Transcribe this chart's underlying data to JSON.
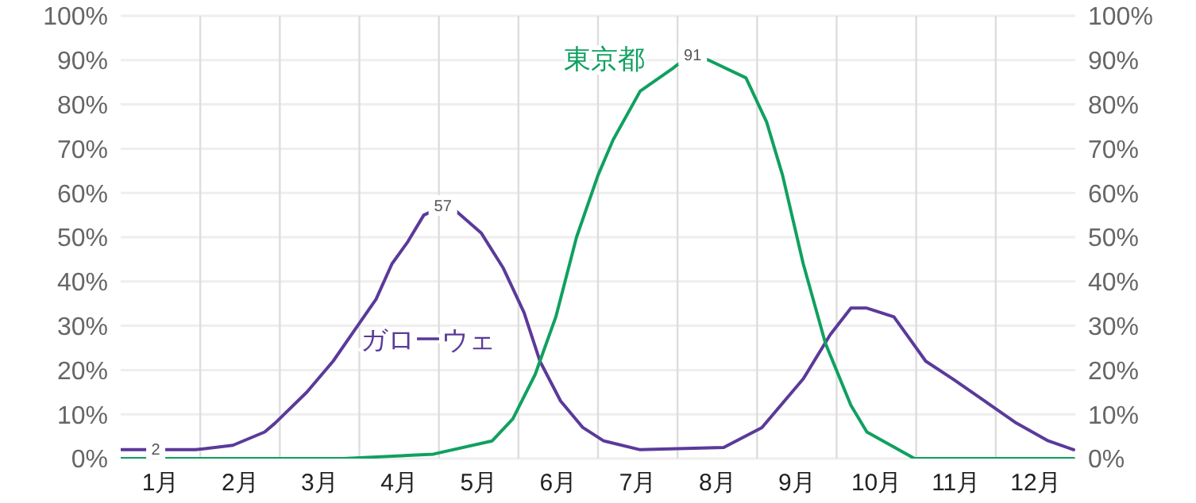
{
  "chart_data": {
    "type": "line",
    "x": [
      0,
      0.94,
      1.41,
      1.81,
      1.94,
      2.34,
      2.67,
      2.94,
      3.21,
      3.41,
      3.61,
      3.81,
      4.05,
      4.21,
      4.53,
      4.81,
      5.07,
      5.27,
      5.53,
      5.81,
      6.07,
      6.53,
      7.58,
      8.06,
      8.58,
      8.92,
      9.18,
      9.38,
      9.72,
      10.12,
      10.46,
      10.86,
      11.26,
      11.66,
      11.98
    ],
    "series": [
      {
        "name": "ガローウェ",
        "color": "#5b3a9a",
        "values": [
          2,
          2,
          3,
          6,
          8,
          15,
          22,
          29,
          36,
          44,
          49,
          55,
          57,
          56,
          51,
          43,
          33,
          22,
          13,
          7,
          4,
          2,
          2.5,
          7,
          18,
          28,
          34,
          34,
          32,
          22,
          18,
          13,
          8,
          4,
          2
        ]
      },
      {
        "name": "東京都",
        "color": "#10a060",
        "x": [
          0,
          2.8,
          3.93,
          4.67,
          4.93,
          5.21,
          5.47,
          5.73,
          6.0,
          6.19,
          6.53,
          6.93,
          7.0,
          7.19,
          7.39,
          7.86,
          8.12,
          8.32,
          8.58,
          8.86,
          9.18,
          9.38,
          9.98,
          11.98
        ],
        "values": [
          0,
          0,
          1,
          4,
          9,
          19,
          32,
          50,
          64,
          72,
          83,
          88,
          89,
          91,
          90,
          86,
          76,
          64,
          44,
          26,
          12,
          6,
          0,
          0
        ]
      }
    ],
    "annotations": [
      {
        "text": "2",
        "x": 0.44,
        "y": 2
      },
      {
        "text": "57",
        "x": 4.05,
        "y": 57
      },
      {
        "text": "91",
        "x": 7.19,
        "y": 91
      }
    ],
    "xlim": [
      0,
      12
    ],
    "xticks": [
      {
        "value": 0.5,
        "label": "1月"
      },
      {
        "value": 1,
        "label": null
      },
      {
        "value": 1.5,
        "label": "2月"
      },
      {
        "value": 2,
        "label": null
      },
      {
        "value": 2.5,
        "label": "3月"
      },
      {
        "value": 3,
        "label": null
      },
      {
        "value": 3.5,
        "label": "4月"
      },
      {
        "value": 4,
        "label": null
      },
      {
        "value": 4.5,
        "label": "5月"
      },
      {
        "value": 5,
        "label": null
      },
      {
        "value": 5.5,
        "label": "6月"
      },
      {
        "value": 6,
        "label": null
      },
      {
        "value": 6.5,
        "label": "7月"
      },
      {
        "value": 7,
        "label": null
      },
      {
        "value": 7.5,
        "label": "8月"
      },
      {
        "value": 8,
        "label": null
      },
      {
        "value": 8.5,
        "label": "9月"
      },
      {
        "value": 9,
        "label": null
      },
      {
        "value": 9.5,
        "label": "10月"
      },
      {
        "value": 10,
        "label": null
      },
      {
        "value": 10.5,
        "label": "11月"
      },
      {
        "value": 11,
        "label": null
      },
      {
        "value": 11.5,
        "label": "12月"
      }
    ],
    "ylim": [
      0,
      100
    ],
    "yticks": [
      {
        "value": 0,
        "label": "0%"
      },
      {
        "value": 10,
        "label": "10%"
      },
      {
        "value": 20,
        "label": "20%"
      },
      {
        "value": 30,
        "label": "30%"
      },
      {
        "value": 40,
        "label": "40%"
      },
      {
        "value": 50,
        "label": "50%"
      },
      {
        "value": 60,
        "label": "60%"
      },
      {
        "value": 70,
        "label": "70%"
      },
      {
        "value": 80,
        "label": "80%"
      },
      {
        "value": 90,
        "label": "90%"
      },
      {
        "value": 100,
        "label": "100%"
      }
    ],
    "y2lim": [
      0,
      100
    ],
    "y2ticks": [
      {
        "value": 0,
        "label": "0%"
      },
      {
        "value": 10,
        "label": "10%"
      },
      {
        "value": 20,
        "label": "20%"
      },
      {
        "value": 30,
        "label": "30%"
      },
      {
        "value": 40,
        "label": "40%"
      },
      {
        "value": 50,
        "label": "50%"
      },
      {
        "value": 60,
        "label": "60%"
      },
      {
        "value": 70,
        "label": "70%"
      },
      {
        "value": 80,
        "label": "80%"
      },
      {
        "value": 90,
        "label": "90%"
      },
      {
        "value": 100,
        "label": "100%"
      }
    ],
    "grid": true,
    "marker": "none",
    "line_style": "solid"
  }
}
